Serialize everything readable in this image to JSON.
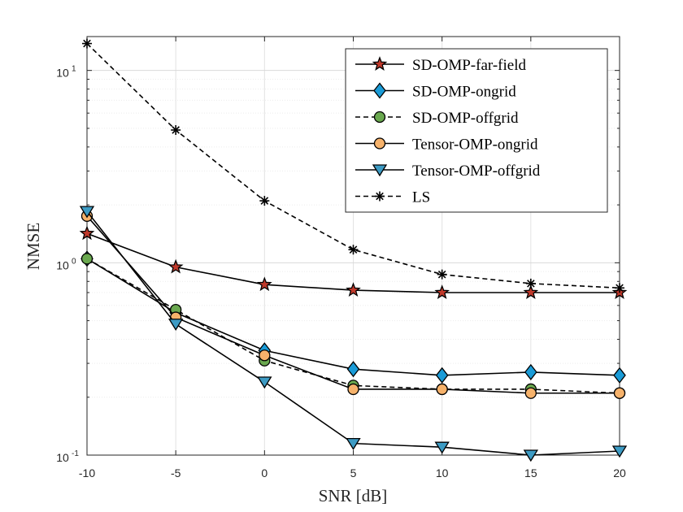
{
  "chart_data": {
    "type": "line",
    "xlabel": "SNR [dB]",
    "ylabel": "NMSE",
    "yscale": "log",
    "xlim": [
      -10,
      20
    ],
    "ylim": [
      0.1,
      15
    ],
    "grid": true,
    "legend_position": "top-right",
    "x": [
      -10,
      -5,
      0,
      5,
      10,
      15,
      20
    ],
    "xticks": [
      -10,
      -5,
      0,
      5,
      10,
      15,
      20
    ],
    "xtick_labels": [
      "-10",
      "-5",
      "0",
      "5",
      "10",
      "15",
      "20"
    ],
    "yticks": [
      {
        "value": 0.1,
        "base": "10",
        "exp": "-1"
      },
      {
        "value": 1,
        "base": "10",
        "exp": "0"
      },
      {
        "value": 10,
        "base": "10",
        "exp": "1"
      }
    ],
    "series": [
      {
        "name": "SD-OMP-far-field",
        "marker": "star",
        "color": "#c0392b",
        "dashed": false,
        "values": [
          1.42,
          0.95,
          0.77,
          0.72,
          0.7,
          0.7,
          0.7
        ]
      },
      {
        "name": "SD-OMP-ongrid",
        "marker": "diamond",
        "color": "#1a9bd7",
        "dashed": false,
        "values": [
          1.05,
          0.55,
          0.35,
          0.28,
          0.26,
          0.27,
          0.26
        ]
      },
      {
        "name": "SD-OMP-offgrid",
        "marker": "circle",
        "color": "#6aa84f",
        "dashed": true,
        "values": [
          1.05,
          0.57,
          0.31,
          0.23,
          0.22,
          0.22,
          0.21
        ]
      },
      {
        "name": "Tensor-OMP-ongrid",
        "marker": "circle",
        "color": "#f6b26b",
        "dashed": false,
        "values": [
          1.75,
          0.52,
          0.33,
          0.22,
          0.22,
          0.21,
          0.21
        ]
      },
      {
        "name": "Tensor-OMP-offgrid",
        "marker": "triangle-down",
        "color": "#3d9bc4",
        "dashed": false,
        "values": [
          1.85,
          0.48,
          0.24,
          0.115,
          0.11,
          0.1,
          0.105
        ]
      },
      {
        "name": "LS",
        "marker": "asterisk",
        "color": "#000000",
        "dashed": true,
        "values": [
          13.8,
          4.9,
          2.1,
          1.17,
          0.87,
          0.78,
          0.74
        ]
      }
    ]
  }
}
